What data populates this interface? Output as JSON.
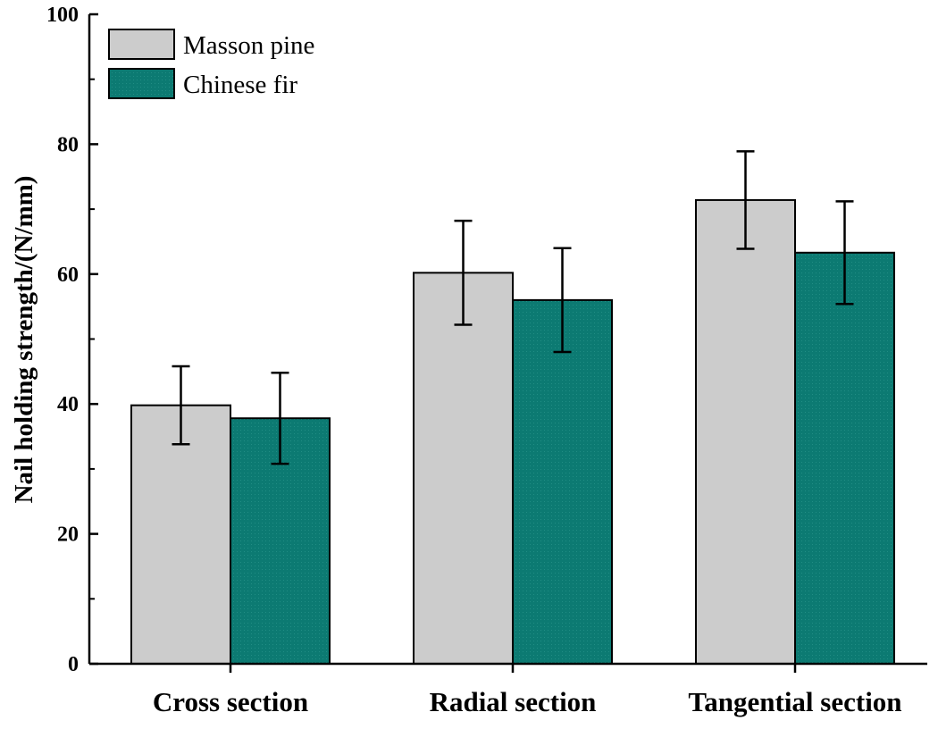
{
  "chart_data": {
    "type": "bar",
    "title": "",
    "xlabel": "",
    "ylabel": "Nail holding strength/(N/mm)",
    "ylim": [
      0,
      100
    ],
    "yticks": [
      0,
      20,
      40,
      60,
      80,
      100
    ],
    "categories": [
      "Cross section",
      "Radial section",
      "Tangential section"
    ],
    "series": [
      {
        "name": "Masson pine",
        "color": "#cccccc",
        "values": [
          39.8,
          60.2,
          71.4
        ],
        "errors": [
          6.0,
          8.0,
          7.5
        ]
      },
      {
        "name": "Chinese fir",
        "color": "#0c7a72",
        "values": [
          37.8,
          56.0,
          63.3
        ],
        "errors": [
          7.0,
          8.0,
          7.9
        ]
      }
    ],
    "legend_position": "top-left",
    "grid": false
  }
}
